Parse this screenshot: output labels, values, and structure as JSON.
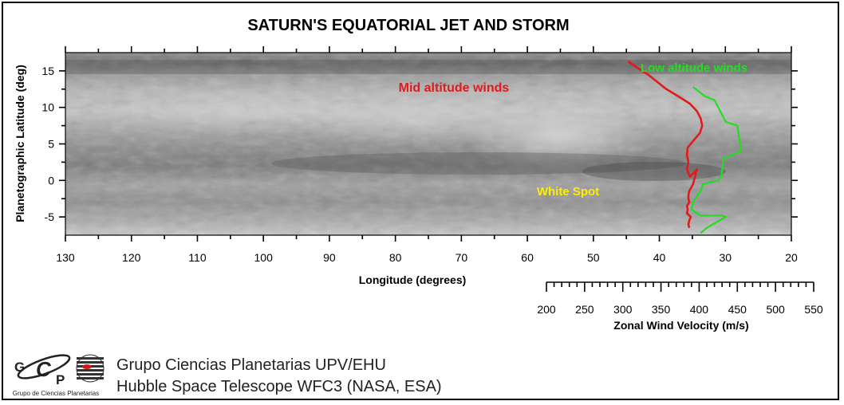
{
  "chart_data": {
    "type": "line",
    "title": "SATURN'S EQUATORIAL JET AND STORM",
    "xlabel": "Longitude (degrees)",
    "ylabel": "Planetographic Latitude (deg)",
    "x_ticks": [
      130,
      120,
      110,
      100,
      90,
      80,
      70,
      60,
      50,
      40,
      30,
      20
    ],
    "xlim": [
      130,
      20
    ],
    "y_ticks": [
      15,
      10,
      5,
      0,
      -5
    ],
    "ylim": [
      -7.5,
      17.5
    ],
    "secondary_axis": {
      "label": "Zonal Wind Velocity (m/s)",
      "ticks": [
        200,
        250,
        300,
        350,
        400,
        450,
        500,
        550
      ],
      "range": [
        200,
        550
      ]
    },
    "series": [
      {
        "name": "Mid altitude winds",
        "color": "#e01b1b",
        "velocity": [
          307,
          318,
          333,
          345,
          357,
          373,
          388,
          397,
          402,
          404,
          401,
          393,
          385,
          384,
          386,
          384,
          388,
          397,
          392,
          387,
          386,
          386,
          387,
          384,
          385,
          384,
          389,
          387,
          386,
          387
        ],
        "latitude": [
          16.3,
          15.5,
          14.5,
          13.5,
          12.5,
          11.5,
          10.5,
          9.5,
          8.5,
          7.5,
          6.5,
          5.5,
          4.5,
          3.5,
          2.5,
          1.5,
          0.5,
          1.5,
          -0.5,
          -1.5,
          -2.0,
          -2.5,
          -3.0,
          -3.5,
          -4.0,
          -4.5,
          -5.0,
          -5.5,
          -6.0,
          -6.5
        ]
      },
      {
        "name": "Low altitude winds",
        "color": "#22dd22",
        "velocity": [
          392,
          408,
          420,
          435,
          450,
          455,
          432,
          429,
          425,
          405,
          402,
          398,
          392,
          390,
          402,
          430,
          435,
          410,
          402
        ],
        "latitude": [
          12.8,
          11.5,
          11.0,
          8.0,
          7.5,
          4.0,
          3.0,
          0.5,
          0.0,
          -0.5,
          -1.5,
          -2.0,
          -3.0,
          -4.0,
          -4.8,
          -4.8,
          -5.0,
          -6.5,
          -7.2
        ]
      }
    ],
    "annotations": [
      {
        "text": "White Spot",
        "color": "#ffee00",
        "longitude": 70,
        "latitude": -1.5
      }
    ]
  },
  "legend": {
    "mid": "Mid altitude winds",
    "low": "Low altitude winds"
  },
  "credits": {
    "logo_text": "Grupo de Ciencias Planetarias",
    "logo_letters": "GCP",
    "line1": "Grupo Ciencias Planetarias UPV/EHU",
    "line2": "Hubble Space Telescope WFC3 (NASA, ESA)"
  },
  "colors": {
    "mid": "#e01b1b",
    "low": "#22dd22",
    "spot": "#ffee00"
  }
}
